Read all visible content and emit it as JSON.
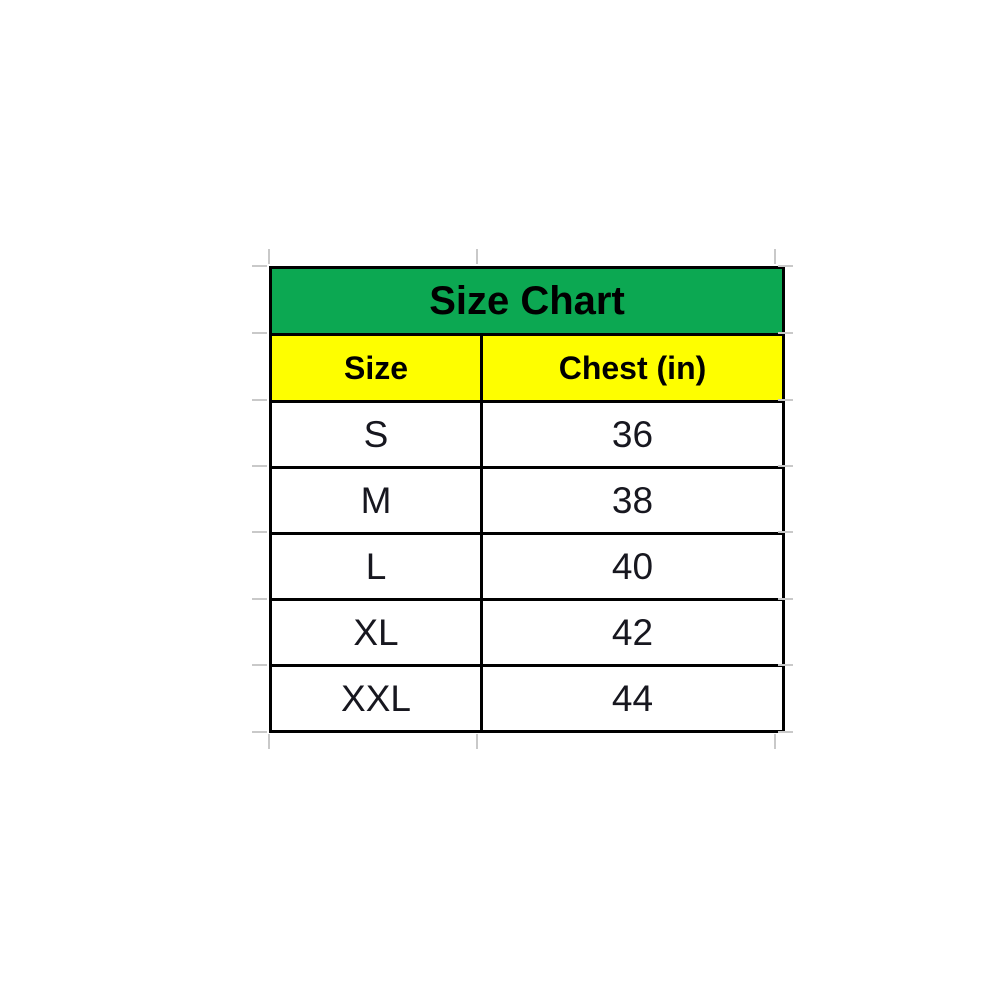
{
  "size_chart": {
    "title": "Size Chart",
    "columns": [
      {
        "label": "Size"
      },
      {
        "label": "Chest (in)"
      }
    ],
    "rows": [
      {
        "size": "S",
        "chest": "36"
      },
      {
        "size": "M",
        "chest": "38"
      },
      {
        "size": "L",
        "chest": "40"
      },
      {
        "size": "XL",
        "chest": "42"
      },
      {
        "size": "XXL",
        "chest": "44"
      }
    ],
    "colors": {
      "page_bg": "#FFFFFF",
      "title_bg": "#0CA852",
      "header_bg": "#FEFE00",
      "border": "#000000",
      "title_text": "#000000",
      "header_text": "#000000",
      "cell_text": "#17171F",
      "gridline": "#C9C9C9"
    }
  },
  "chart_data": {
    "type": "table",
    "title": "Size Chart",
    "columns": [
      "Size",
      "Chest (in)"
    ],
    "rows": [
      [
        "S",
        36
      ],
      [
        "M",
        38
      ],
      [
        "L",
        40
      ],
      [
        "XL",
        42
      ],
      [
        "XXL",
        44
      ]
    ],
    "layout_hints": {
      "title_row_bg": "#0CA852",
      "header_row_bg": "#FEFE00",
      "body_bg": "#FFFFFF",
      "grid": "black cell borders, faint excel gridline stubs outside table"
    }
  }
}
